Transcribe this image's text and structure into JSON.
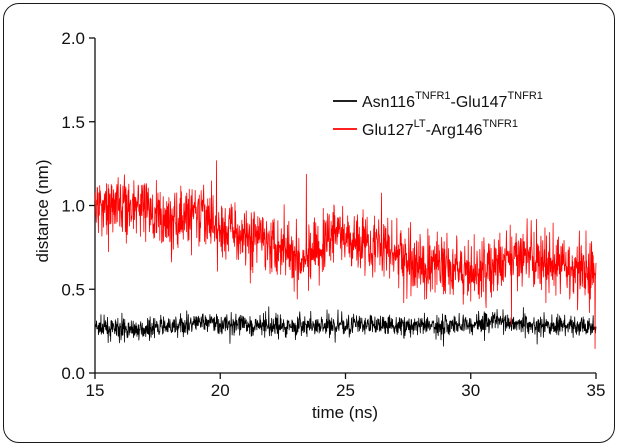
{
  "chart_data": {
    "type": "line",
    "xlabel": "time (ns)",
    "ylabel": "distance (nm)",
    "xlim": [
      15,
      35
    ],
    "ylim": [
      0.0,
      2.0
    ],
    "x_ticks": [
      15,
      20,
      25,
      30,
      35
    ],
    "y_ticks": [
      0.0,
      0.5,
      1.0,
      1.5,
      2.0
    ],
    "x_tick_labels": [
      "15",
      "20",
      "25",
      "30",
      "35"
    ],
    "y_tick_labels": [
      "0.0",
      "0.5",
      "1.0",
      "1.5",
      "2.0"
    ],
    "grid": false,
    "legend_position": "top-right",
    "series": [
      {
        "name_parts": [
          "Asn116",
          "TNFR1",
          "-Glu147",
          "TNFR1"
        ],
        "color": "#000000",
        "noise": 0.03,
        "trend_x": [
          15,
          16,
          18,
          19.5,
          20,
          22,
          24,
          26,
          28,
          30,
          31,
          32,
          33,
          35
        ],
        "trend_y": [
          0.27,
          0.26,
          0.27,
          0.31,
          0.29,
          0.28,
          0.28,
          0.29,
          0.28,
          0.29,
          0.32,
          0.29,
          0.28,
          0.28
        ]
      },
      {
        "name_parts": [
          "Glu127",
          "LT",
          "-Arg146",
          "TNFR1"
        ],
        "color": "#ff0000",
        "noise": 0.09,
        "trend_x": [
          15,
          16,
          17,
          18,
          19,
          20,
          21,
          22,
          23,
          24,
          24.5,
          25,
          26,
          27,
          28,
          29,
          30,
          31,
          32,
          33,
          34,
          35
        ],
        "trend_y": [
          1.0,
          1.02,
          0.98,
          0.9,
          0.95,
          0.87,
          0.82,
          0.8,
          0.72,
          0.7,
          0.85,
          0.82,
          0.78,
          0.72,
          0.62,
          0.66,
          0.6,
          0.62,
          0.72,
          0.65,
          0.62,
          0.6
        ]
      }
    ]
  }
}
